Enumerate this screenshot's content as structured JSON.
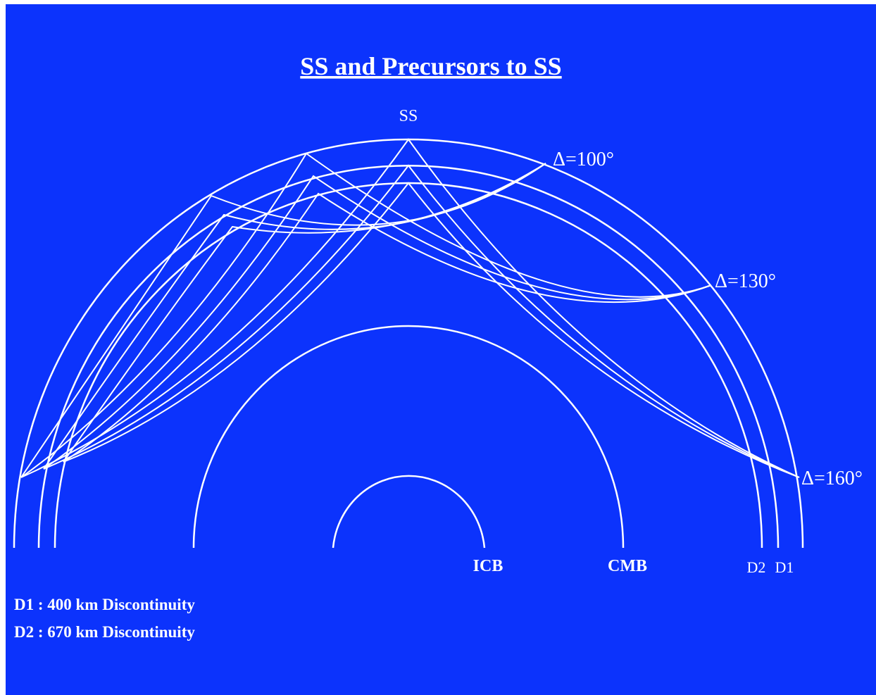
{
  "title": "SS and Precursors to SS",
  "labels": {
    "ss": "SS",
    "delta_100": "Δ=100°",
    "delta_130": "Δ=130°",
    "delta_160": "Δ=160°",
    "icb": "ICB",
    "cmb": "CMB",
    "d2": "D2",
    "d1": "D1"
  },
  "legend": [
    "D1 : 400 km Discontinuity",
    "D2 : 670 km Discontinuity"
  ]
}
